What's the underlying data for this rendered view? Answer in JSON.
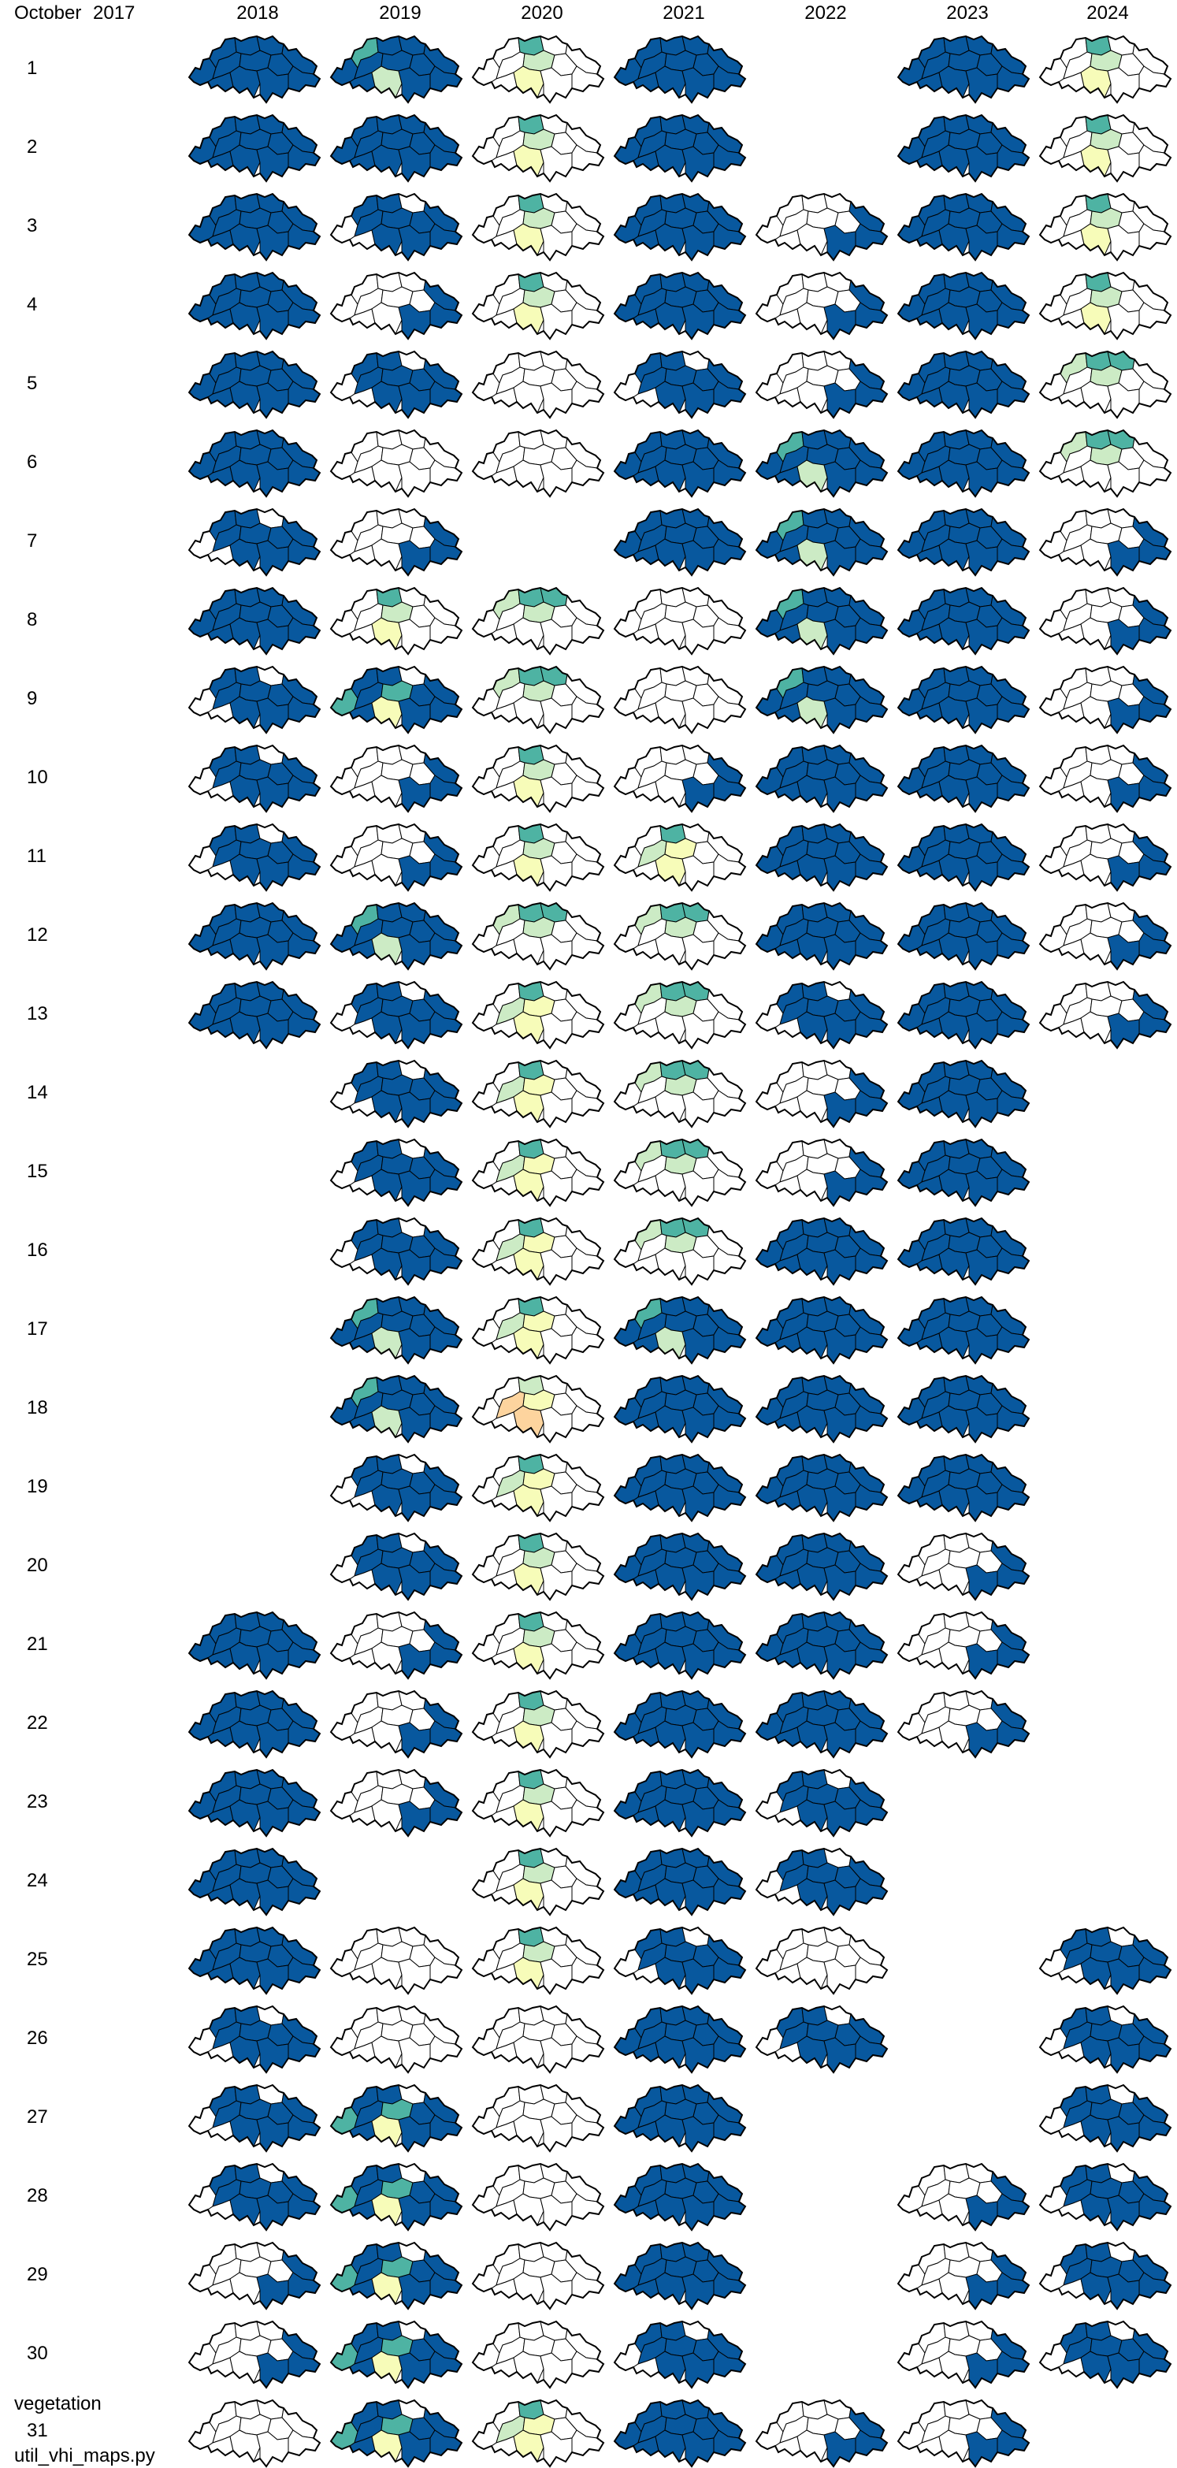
{
  "header": {
    "month": "October",
    "first_year": "2017"
  },
  "years": [
    "2018",
    "2019",
    "2020",
    "2021",
    "2022",
    "2023",
    "2024"
  ],
  "days": [
    "1",
    "2",
    "3",
    "4",
    "5",
    "6",
    "7",
    "8",
    "9",
    "10",
    "11",
    "12",
    "13",
    "14",
    "15",
    "16",
    "17",
    "18",
    "19",
    "20",
    "21",
    "22",
    "23",
    "24",
    "25",
    "26",
    "27",
    "28",
    "29",
    "30"
  ],
  "last_row": {
    "label": "vegetation",
    "day": "31"
  },
  "footer": {
    "filename": "util_vhi_maps.py"
  },
  "colors": {
    "blue": "#08589e",
    "teal": "#4eb3a3",
    "light_green": "#ccebc5",
    "light_yellow": "#f7fcb9",
    "orange": "#fdd49e",
    "white": "#ffffff",
    "outline": "#000000"
  },
  "map_cells": {
    "2018": [
      "blue",
      "blue",
      "blue",
      "blue",
      "blue",
      "blue",
      "blue-mix",
      "blue",
      "blue-mix",
      "blue-mix",
      "blue-mix",
      "blue",
      "blue",
      "",
      "",
      "",
      "",
      "",
      "",
      "",
      "blue",
      "blue",
      "blue",
      "blue",
      "blue",
      "blue-mix",
      "blue-mix",
      "blue-mix",
      "white-mix",
      "white-mix",
      "white"
    ],
    "2019": [
      "blue-green",
      "blue",
      "blue-mix",
      "white-mix",
      "blue-mix",
      "white",
      "white-mix",
      "white-green",
      "teal-mix",
      "white-mix",
      "white-mix",
      "blue-green",
      "blue-mix",
      "blue-mix",
      "blue-mix",
      "blue-mix",
      "blue-green",
      "blue-green",
      "blue-mix",
      "blue-mix",
      "white-mix",
      "white-mix",
      "white-mix",
      "",
      "white",
      "white",
      "teal-mix",
      "teal-mix",
      "teal-mix",
      "teal-mix",
      "teal-mix"
    ],
    "2020": [
      "white-green",
      "white-green",
      "white-green",
      "white-green",
      "white",
      "white",
      "",
      "white-teal",
      "white-teal",
      "white-green",
      "white-green",
      "white-teal",
      "white-yellow",
      "white-yellow",
      "white-yellow",
      "white-yellow",
      "white-yellow",
      "white-orange",
      "white-yellow",
      "white-green",
      "white-green",
      "white-green",
      "white-green",
      "white-green",
      "white-green",
      "white",
      "white",
      "white",
      "white",
      "white",
      "white-yellow"
    ],
    "2021": [
      "blue",
      "blue",
      "blue",
      "blue",
      "blue-mix",
      "blue",
      "blue",
      "white",
      "white",
      "white-mix",
      "white-yellow",
      "white-teal",
      "white-teal",
      "white-teal",
      "white-teal",
      "white-teal",
      "blue-green",
      "blue",
      "blue",
      "blue",
      "blue",
      "blue",
      "blue",
      "blue",
      "blue-mix",
      "blue",
      "blue",
      "blue",
      "blue",
      "blue-mix",
      "blue"
    ],
    "2022": [
      "",
      "",
      "white-mix",
      "white-mix",
      "white-mix",
      "blue-green",
      "blue-green",
      "blue-green",
      "blue-green",
      "blue",
      "blue",
      "blue",
      "blue-mix",
      "white-mix",
      "white-mix",
      "blue",
      "blue",
      "blue",
      "blue",
      "blue",
      "blue",
      "blue",
      "blue-mix",
      "blue-mix",
      "white",
      "blue-mix",
      "",
      "",
      "",
      "",
      "white-mix"
    ],
    "2023": [
      "blue",
      "blue",
      "blue",
      "blue",
      "blue",
      "blue",
      "blue",
      "blue",
      "blue",
      "blue",
      "blue",
      "blue",
      "blue",
      "blue",
      "blue",
      "blue",
      "blue",
      "blue",
      "blue",
      "white-mix",
      "white-mix",
      "white-mix",
      "",
      "",
      "",
      "",
      "",
      "white-mix",
      "white-mix",
      "white-mix",
      "white-mix"
    ],
    "2024": [
      "white-green",
      "white-green",
      "white-green",
      "white-green",
      "white-teal",
      "white-teal",
      "white-mix",
      "white-mix",
      "white-mix",
      "white-mix",
      "white-mix",
      "white-mix",
      "white-mix",
      "",
      "",
      "",
      "",
      "",
      "",
      "",
      "",
      "",
      "",
      "",
      "blue-mix",
      "blue-mix",
      "blue-mix",
      "blue-mix",
      "blue-mix",
      "blue-mix",
      ""
    ]
  }
}
